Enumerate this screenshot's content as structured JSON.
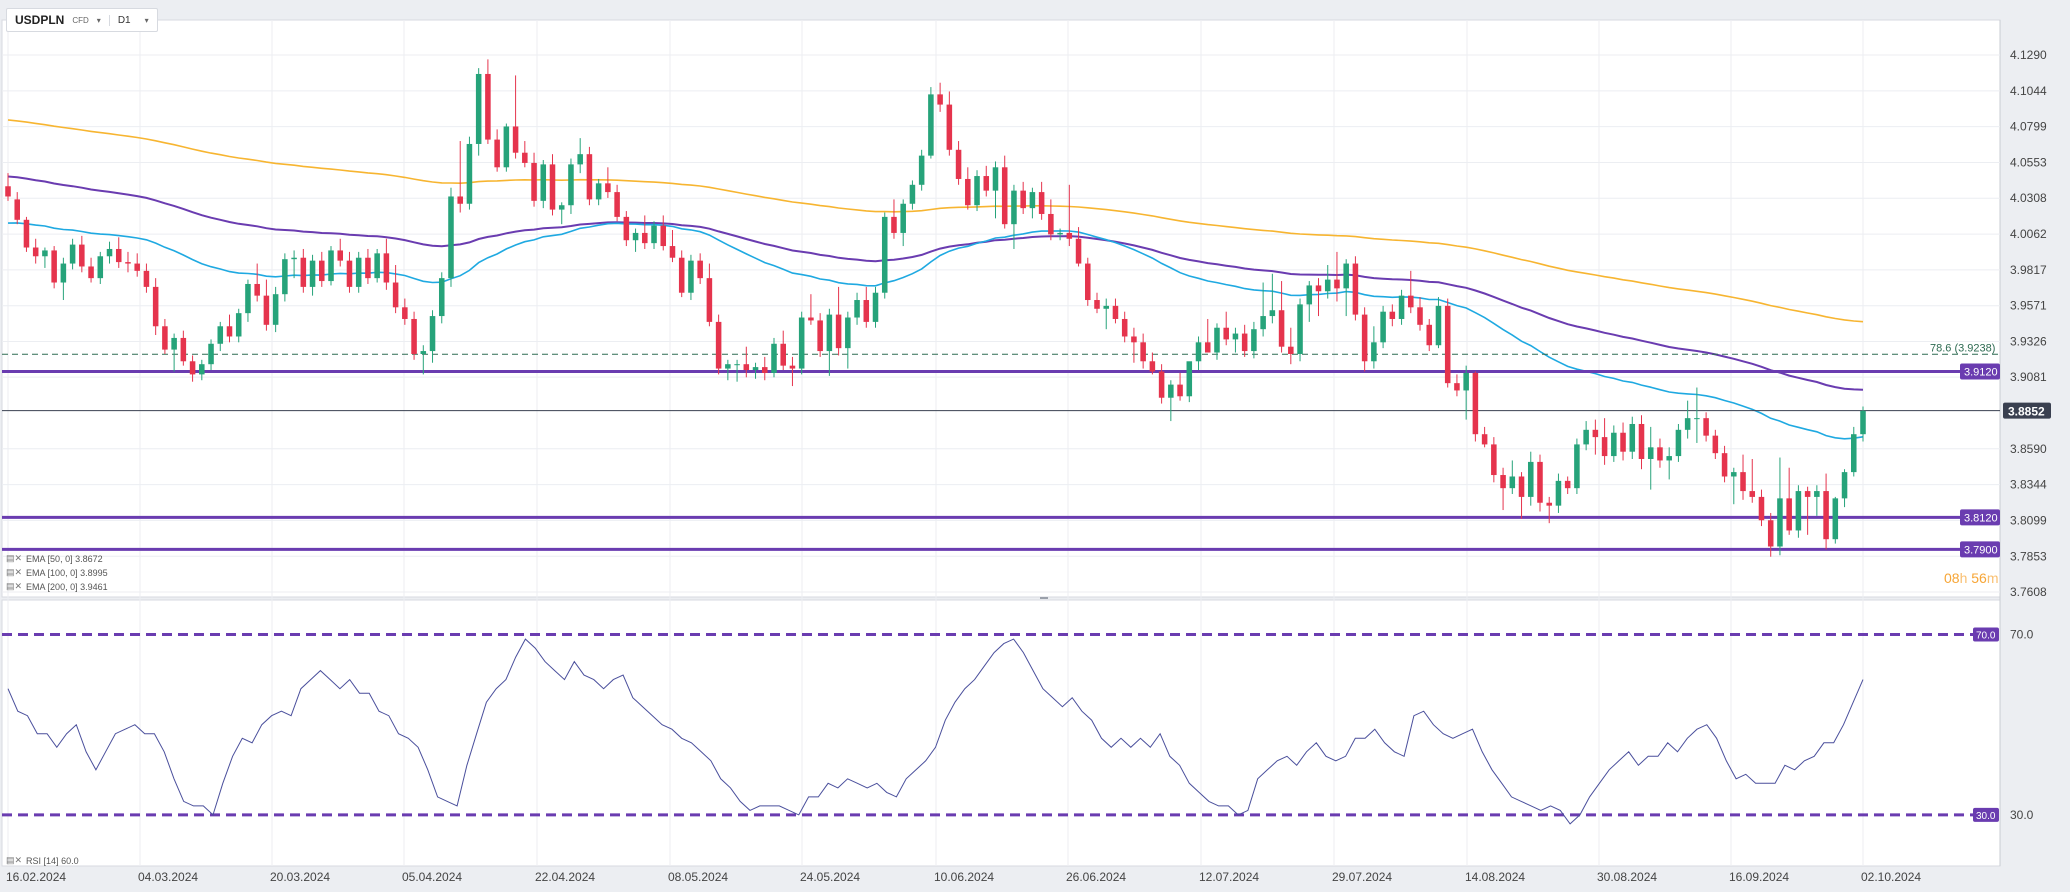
{
  "header": {
    "symbol": "USDPLN",
    "symbol_type": "CFD",
    "timeframe": "D1",
    "caret": "▾"
  },
  "legends": {
    "ema50": "EMA [50, 0] 3.8672",
    "ema100": "EMA [100, 0] 3.8995",
    "ema200": "EMA [200, 0] 3.9461",
    "rsi": "RSI [14] 60.0"
  },
  "countdown": {
    "hours": "08",
    "h_unit": "h",
    "minutes": "56",
    "m_unit": "m"
  },
  "colors": {
    "up": "#26a37a",
    "down": "#e5344d",
    "ema50": "#1fa9e1",
    "ema100": "#6a3cb0",
    "ema200": "#f7b531",
    "level": "#6a3cb0",
    "rsi": "#4a4f9c",
    "last_price": "#3a4050",
    "fib": "#2e6b52"
  },
  "chart_data": {
    "type": "candlestick",
    "symbol": "USDPLN",
    "timeframe": "D1",
    "y_ticks": [
      "4.1290",
      "4.1044",
      "4.0799",
      "4.0553",
      "4.0308",
      "4.0062",
      "3.9817",
      "3.9571",
      "3.9326",
      "3.9081",
      "3.8590",
      "3.8344",
      "3.8099",
      "3.7853",
      "3.7608"
    ],
    "x_ticks": [
      "16.02.2024",
      "04.03.2024",
      "20.03.2024",
      "05.04.2024",
      "22.04.2024",
      "08.05.2024",
      "24.05.2024",
      "10.06.2024",
      "26.06.2024",
      "12.07.2024",
      "29.07.2024",
      "14.08.2024",
      "30.08.2024",
      "16.09.2024",
      "02.10.2024"
    ],
    "levels": [
      {
        "label": "3.9120",
        "value": 3.912
      },
      {
        "label": "3.8120",
        "value": 3.812
      },
      {
        "label": "3.7900",
        "value": 3.79
      }
    ],
    "fib": {
      "label": "78.6 (3.9238)",
      "value": 3.9238
    },
    "last_price": {
      "label": "3.8852",
      "value": 3.8852
    },
    "candles": [
      [
        4.039,
        4.048,
        4.029,
        4.032
      ],
      [
        4.03,
        4.035,
        4.013,
        4.016
      ],
      [
        4.016,
        4.018,
        3.994,
        3.997
      ],
      [
        3.997,
        4.003,
        3.986,
        3.991
      ],
      [
        3.991,
        3.997,
        3.983,
        3.995
      ],
      [
        3.995,
        3.998,
        3.969,
        3.973
      ],
      [
        3.973,
        3.99,
        3.961,
        3.986
      ],
      [
        3.986,
        4.003,
        3.982,
        3.999
      ],
      [
        3.999,
        4.005,
        3.98,
        3.984
      ],
      [
        3.984,
        3.99,
        3.973,
        3.976
      ],
      [
        3.976,
        3.994,
        3.972,
        3.991
      ],
      [
        3.991,
        4.001,
        3.986,
        3.996
      ],
      [
        3.996,
        4.004,
        3.983,
        3.987
      ],
      [
        3.987,
        3.994,
        3.98,
        3.986
      ],
      [
        3.986,
        3.993,
        3.977,
        3.981
      ],
      [
        3.981,
        3.986,
        3.966,
        3.97
      ],
      [
        3.97,
        3.976,
        3.937,
        3.943
      ],
      [
        3.943,
        3.948,
        3.924,
        3.927
      ],
      [
        3.927,
        3.938,
        3.912,
        3.935
      ],
      [
        3.935,
        3.94,
        3.916,
        3.919
      ],
      [
        3.919,
        3.923,
        3.905,
        3.91
      ],
      [
        3.91,
        3.92,
        3.906,
        3.917
      ],
      [
        3.917,
        3.934,
        3.913,
        3.931
      ],
      [
        3.931,
        3.946,
        3.926,
        3.943
      ],
      [
        3.943,
        3.951,
        3.932,
        3.936
      ],
      [
        3.936,
        3.955,
        3.932,
        3.952
      ],
      [
        3.952,
        3.975,
        3.946,
        3.972
      ],
      [
        3.972,
        3.986,
        3.96,
        3.964
      ],
      [
        3.964,
        3.975,
        3.94,
        3.944
      ],
      [
        3.944,
        3.97,
        3.939,
        3.965
      ],
      [
        3.965,
        3.993,
        3.96,
        3.989
      ],
      [
        3.989,
        3.995,
        3.976,
        3.99
      ],
      [
        3.99,
        3.996,
        3.966,
        3.97
      ],
      [
        3.97,
        3.992,
        3.964,
        3.988
      ],
      [
        3.988,
        3.994,
        3.97,
        3.974
      ],
      [
        3.974,
        3.998,
        3.971,
        3.995
      ],
      [
        3.995,
        4.003,
        3.984,
        3.988
      ],
      [
        3.988,
        3.994,
        3.966,
        3.97
      ],
      [
        3.97,
        3.994,
        3.966,
        3.99
      ],
      [
        3.99,
        3.996,
        3.972,
        3.976
      ],
      [
        3.976,
        3.996,
        3.973,
        3.993
      ],
      [
        3.993,
        4.003,
        3.968,
        3.973
      ],
      [
        3.973,
        3.985,
        3.952,
        3.956
      ],
      [
        3.956,
        3.962,
        3.944,
        3.948
      ],
      [
        3.948,
        3.953,
        3.92,
        3.924
      ],
      [
        3.924,
        3.93,
        3.91,
        3.926
      ],
      [
        3.926,
        3.954,
        3.918,
        3.95
      ],
      [
        3.95,
        3.98,
        3.945,
        3.976
      ],
      [
        3.976,
        4.038,
        3.97,
        4.032
      ],
      [
        4.032,
        4.07,
        4.021,
        4.027
      ],
      [
        4.027,
        4.073,
        4.023,
        4.068
      ],
      [
        4.068,
        4.12,
        4.06,
        4.116
      ],
      [
        4.116,
        4.126,
        4.068,
        4.071
      ],
      [
        4.071,
        4.078,
        4.049,
        4.052
      ],
      [
        4.052,
        4.082,
        4.049,
        4.08
      ],
      [
        4.08,
        4.115,
        4.058,
        4.062
      ],
      [
        4.062,
        4.07,
        4.052,
        4.055
      ],
      [
        4.055,
        4.062,
        4.025,
        4.029
      ],
      [
        4.029,
        4.057,
        4.024,
        4.054
      ],
      [
        4.054,
        4.061,
        4.019,
        4.023
      ],
      [
        4.023,
        4.028,
        4.013,
        4.026
      ],
      [
        4.026,
        4.058,
        4.02,
        4.054
      ],
      [
        4.054,
        4.072,
        4.048,
        4.061
      ],
      [
        4.061,
        4.066,
        4.026,
        4.03
      ],
      [
        4.03,
        4.044,
        4.026,
        4.041
      ],
      [
        4.041,
        4.052,
        4.031,
        4.035
      ],
      [
        4.035,
        4.04,
        4.015,
        4.018
      ],
      [
        4.018,
        4.022,
        3.998,
        4.002
      ],
      [
        4.002,
        4.01,
        3.994,
        4.007
      ],
      [
        4.007,
        4.019,
        3.996,
        4.0
      ],
      [
        4.0,
        4.015,
        3.996,
        4.012
      ],
      [
        4.012,
        4.019,
        3.995,
        3.998
      ],
      [
        3.998,
        4.009,
        3.987,
        3.99
      ],
      [
        3.99,
        3.995,
        3.963,
        3.966
      ],
      [
        3.966,
        3.992,
        3.961,
        3.988
      ],
      [
        3.988,
        3.993,
        3.972,
        3.976
      ],
      [
        3.976,
        3.986,
        3.943,
        3.946
      ],
      [
        3.946,
        3.951,
        3.91,
        3.914
      ],
      [
        3.914,
        3.92,
        3.906,
        3.917
      ],
      [
        3.917,
        3.92,
        3.905,
        3.917
      ],
      [
        3.917,
        3.929,
        3.908,
        3.913
      ],
      [
        3.913,
        3.918,
        3.907,
        3.915
      ],
      [
        3.915,
        3.922,
        3.906,
        3.911
      ],
      [
        3.911,
        3.935,
        3.908,
        3.931
      ],
      [
        3.931,
        3.94,
        3.913,
        3.916
      ],
      [
        3.916,
        3.922,
        3.902,
        3.914
      ],
      [
        3.914,
        3.953,
        3.91,
        3.949
      ],
      [
        3.949,
        3.965,
        3.944,
        3.947
      ],
      [
        3.947,
        3.952,
        3.922,
        3.926
      ],
      [
        3.926,
        3.955,
        3.909,
        3.951
      ],
      [
        3.951,
        3.97,
        3.923,
        3.928
      ],
      [
        3.928,
        3.953,
        3.914,
        3.949
      ],
      [
        3.949,
        3.966,
        3.944,
        3.961
      ],
      [
        3.961,
        3.97,
        3.942,
        3.946
      ],
      [
        3.946,
        3.97,
        3.942,
        3.966
      ],
      [
        3.966,
        4.021,
        3.962,
        4.018
      ],
      [
        4.018,
        4.03,
        4.003,
        4.007
      ],
      [
        4.007,
        4.03,
        3.998,
        4.027
      ],
      [
        4.027,
        4.043,
        4.023,
        4.04
      ],
      [
        4.04,
        4.064,
        4.036,
        4.06
      ],
      [
        4.06,
        4.107,
        4.058,
        4.102
      ],
      [
        4.102,
        4.11,
        4.09,
        4.095
      ],
      [
        4.095,
        4.104,
        4.06,
        4.064
      ],
      [
        4.064,
        4.07,
        4.04,
        4.044
      ],
      [
        4.044,
        4.052,
        4.023,
        4.026
      ],
      [
        4.026,
        4.05,
        4.022,
        4.046
      ],
      [
        4.046,
        4.053,
        4.032,
        4.036
      ],
      [
        4.036,
        4.056,
        4.017,
        4.052
      ],
      [
        4.052,
        4.06,
        4.01,
        4.013
      ],
      [
        4.013,
        4.04,
        3.996,
        4.036
      ],
      [
        4.036,
        4.042,
        4.02,
        4.024
      ],
      [
        4.024,
        4.038,
        4.017,
        4.035
      ],
      [
        4.035,
        4.042,
        4.016,
        4.02
      ],
      [
        4.02,
        4.03,
        4.002,
        4.006
      ],
      [
        4.006,
        4.01,
        4.002,
        4.007
      ],
      [
        4.007,
        4.04,
        3.998,
        4.003
      ],
      [
        4.003,
        4.011,
        3.984,
        3.986
      ],
      [
        3.986,
        3.99,
        3.957,
        3.961
      ],
      [
        3.961,
        3.966,
        3.952,
        3.955
      ],
      [
        3.955,
        3.962,
        3.941,
        3.957
      ],
      [
        3.957,
        3.962,
        3.945,
        3.948
      ],
      [
        3.948,
        3.953,
        3.932,
        3.936
      ],
      [
        3.936,
        3.942,
        3.918,
        3.932
      ],
      [
        3.932,
        3.938,
        3.914,
        3.919
      ],
      [
        3.919,
        3.925,
        3.91,
        3.912
      ],
      [
        3.912,
        3.917,
        3.89,
        3.894
      ],
      [
        3.894,
        3.906,
        3.878,
        3.903
      ],
      [
        3.903,
        3.911,
        3.892,
        3.895
      ],
      [
        3.895,
        3.916,
        3.891,
        3.919
      ],
      [
        3.919,
        3.936,
        3.913,
        3.932
      ],
      [
        3.932,
        3.948,
        3.928,
        3.925
      ],
      [
        3.925,
        3.945,
        3.92,
        3.942
      ],
      [
        3.942,
        3.953,
        3.93,
        3.934
      ],
      [
        3.934,
        3.942,
        3.925,
        3.938
      ],
      [
        3.938,
        3.944,
        3.922,
        3.926
      ],
      [
        3.926,
        3.946,
        3.921,
        3.941
      ],
      [
        3.941,
        3.973,
        3.936,
        3.95
      ],
      [
        3.95,
        3.979,
        3.945,
        3.954
      ],
      [
        3.954,
        3.974,
        3.925,
        3.929
      ],
      [
        3.929,
        3.942,
        3.917,
        3.924
      ],
      [
        3.924,
        3.962,
        3.919,
        3.958
      ],
      [
        3.958,
        3.974,
        3.946,
        3.971
      ],
      [
        3.971,
        3.976,
        3.95,
        3.967
      ],
      [
        3.967,
        3.985,
        3.962,
        3.975
      ],
      [
        3.975,
        3.994,
        3.96,
        3.969
      ],
      [
        3.969,
        3.989,
        3.95,
        3.986
      ],
      [
        3.986,
        3.991,
        3.947,
        3.951
      ],
      [
        3.951,
        3.956,
        3.912,
        3.919
      ],
      [
        3.919,
        3.943,
        3.914,
        3.932
      ],
      [
        3.932,
        3.957,
        3.928,
        3.953
      ],
      [
        3.953,
        3.958,
        3.943,
        3.948
      ],
      [
        3.948,
        3.968,
        3.944,
        3.964
      ],
      [
        3.964,
        3.981,
        3.952,
        3.956
      ],
      [
        3.956,
        3.963,
        3.94,
        3.944
      ],
      [
        3.944,
        3.948,
        3.926,
        3.93
      ],
      [
        3.93,
        3.963,
        3.928,
        3.957
      ],
      [
        3.957,
        3.962,
        3.901,
        3.904
      ],
      [
        3.904,
        3.91,
        3.895,
        3.899
      ],
      [
        3.899,
        3.916,
        3.879,
        3.911
      ],
      [
        3.911,
        3.912,
        3.864,
        3.869
      ],
      [
        3.869,
        3.874,
        3.86,
        3.862
      ],
      [
        3.862,
        3.867,
        3.836,
        3.841
      ],
      [
        3.841,
        3.846,
        3.817,
        3.832
      ],
      [
        3.832,
        3.851,
        3.828,
        3.84
      ],
      [
        3.84,
        3.843,
        3.811,
        3.826
      ],
      [
        3.826,
        3.857,
        3.82,
        3.85
      ],
      [
        3.85,
        3.855,
        3.816,
        3.822
      ],
      [
        3.822,
        3.826,
        3.808,
        3.82
      ],
      [
        3.82,
        3.842,
        3.815,
        3.837
      ],
      [
        3.837,
        3.84,
        3.828,
        3.832
      ],
      [
        3.832,
        3.866,
        3.828,
        3.862
      ],
      [
        3.862,
        3.878,
        3.858,
        3.872
      ],
      [
        3.872,
        3.879,
        3.855,
        3.867
      ],
      [
        3.867,
        3.88,
        3.848,
        3.854
      ],
      [
        3.854,
        3.875,
        3.85,
        3.87
      ],
      [
        3.87,
        3.877,
        3.851,
        3.857
      ],
      [
        3.857,
        3.881,
        3.852,
        3.876
      ],
      [
        3.876,
        3.882,
        3.845,
        3.852
      ],
      [
        3.852,
        3.874,
        3.831,
        3.86
      ],
      [
        3.86,
        3.866,
        3.846,
        3.851
      ],
      [
        3.851,
        3.86,
        3.838,
        3.854
      ],
      [
        3.854,
        3.876,
        3.85,
        3.872
      ],
      [
        3.872,
        3.892,
        3.866,
        3.88
      ],
      [
        3.88,
        3.901,
        3.863,
        3.88
      ],
      [
        3.88,
        3.884,
        3.864,
        3.868
      ],
      [
        3.868,
        3.872,
        3.852,
        3.856
      ],
      [
        3.856,
        3.861,
        3.836,
        3.84
      ],
      [
        3.84,
        3.846,
        3.821,
        3.843
      ],
      [
        3.843,
        3.855,
        3.824,
        3.83
      ],
      [
        3.83,
        3.852,
        3.822,
        3.826
      ],
      [
        3.826,
        3.831,
        3.806,
        3.81
      ],
      [
        3.81,
        3.815,
        3.785,
        3.792
      ],
      [
        3.792,
        3.853,
        3.786,
        3.825
      ],
      [
        3.825,
        3.846,
        3.8,
        3.803
      ],
      [
        3.803,
        3.834,
        3.798,
        3.83
      ],
      [
        3.83,
        3.833,
        3.8,
        3.826
      ],
      [
        3.826,
        3.834,
        3.813,
        3.83
      ],
      [
        3.83,
        3.842,
        3.79,
        3.797
      ],
      [
        3.797,
        3.826,
        3.794,
        3.825
      ],
      [
        3.825,
        3.845,
        3.819,
        3.843
      ],
      [
        3.843,
        3.874,
        3.84,
        3.869
      ],
      [
        3.869,
        3.888,
        3.864,
        3.885
      ]
    ],
    "ema_endpoints": {
      "ema50": [
        4.013,
        3.8672
      ],
      "ema100": [
        4.046,
        3.8995
      ],
      "ema200": [
        4.085,
        3.9461
      ]
    },
    "rsi": {
      "levels": [
        70.0,
        30.0
      ],
      "level_labels": [
        "70.0",
        "30.0"
      ],
      "values": [
        58,
        53,
        52,
        48,
        48,
        45,
        48,
        50,
        44,
        40,
        44,
        48,
        49,
        50,
        48,
        48,
        44,
        38,
        33,
        32,
        32,
        30,
        37,
        43,
        47,
        46,
        50,
        52,
        53,
        52,
        58,
        60,
        62,
        60,
        58,
        60,
        57,
        57,
        53,
        52,
        48,
        47,
        45,
        40,
        34,
        33,
        32,
        41,
        48,
        55,
        58,
        60,
        65,
        69,
        67,
        64,
        62,
        60,
        64,
        61,
        60,
        58,
        60,
        61,
        56,
        54,
        52,
        50,
        49,
        47,
        46,
        44,
        42,
        38,
        36,
        33,
        31,
        32,
        32,
        32,
        31,
        30,
        34,
        34,
        37,
        36,
        38,
        37,
        36,
        37,
        35,
        34,
        38,
        40,
        42,
        45,
        51,
        55,
        58,
        60,
        63,
        66,
        68,
        69,
        66,
        62,
        58,
        56,
        54,
        56,
        53,
        51,
        47,
        45,
        47,
        45,
        47,
        45,
        48,
        43,
        41,
        37,
        35,
        33,
        32,
        32,
        30,
        31,
        38,
        40,
        42,
        43,
        41,
        44,
        46,
        43,
        42,
        43,
        47,
        47,
        49,
        46,
        44,
        43,
        52,
        53,
        50,
        48,
        47,
        48,
        49,
        44,
        40,
        37,
        34,
        33,
        32,
        31,
        32,
        31,
        28,
        30,
        34,
        37,
        40,
        42,
        44,
        41,
        43,
        43,
        46,
        44,
        47,
        49,
        50,
        47,
        42,
        38,
        39,
        37,
        37,
        37,
        41,
        40,
        42,
        43,
        46,
        46,
        50,
        55,
        60
      ]
    }
  }
}
